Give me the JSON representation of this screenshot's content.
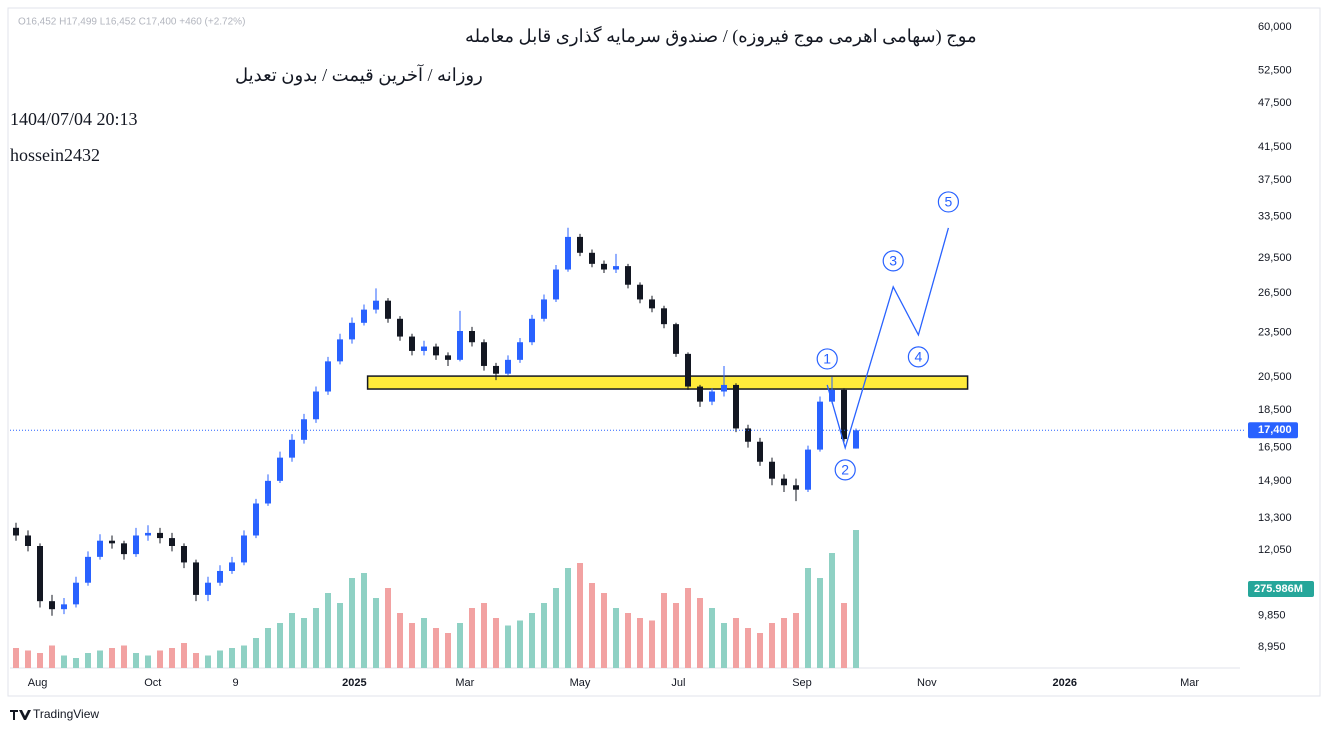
{
  "chart_data": {
    "type": "candlestick",
    "title": "موج (سهامی اهرمی موج فیروزه) / صندوق سرمایه گذاری قابل معامله",
    "subtitle": "روزانه / آخرین قیمت / بدون تعدیل",
    "timestamp": "1404/07/04 20:13",
    "author": "hossein2432",
    "ohlc_legend": "O16,452 H17,499 L16,452 C17,400 +460 (+2.72%)",
    "brand": "TradingView",
    "log_scale": true,
    "up_color": "#2962ff",
    "down_color": "#131722",
    "volume_up_color": "#8fd1c4",
    "volume_down_color": "#f2a2a2",
    "ylim": [
      8390,
      63200
    ],
    "yticks": [
      {
        "value": 60000,
        "label": "60,000"
      },
      {
        "value": 52500,
        "label": "52,500"
      },
      {
        "value": 47500,
        "label": "47,500"
      },
      {
        "value": 41500,
        "label": "41,500"
      },
      {
        "value": 37500,
        "label": "37,500"
      },
      {
        "value": 33500,
        "label": "33,500"
      },
      {
        "value": 29500,
        "label": "29,500"
      },
      {
        "value": 26500,
        "label": "26,500"
      },
      {
        "value": 23500,
        "label": "23,500"
      },
      {
        "value": 20500,
        "label": "20,500"
      },
      {
        "value": 18500,
        "label": "18,500"
      },
      {
        "value": 16500,
        "label": "16,500"
      },
      {
        "value": 14900,
        "label": "14,900"
      },
      {
        "value": 13300,
        "label": "13,300"
      },
      {
        "value": 12050,
        "label": "12,050"
      },
      {
        "value": 9850,
        "label": "9,850"
      },
      {
        "value": 8950,
        "label": "8,950"
      }
    ],
    "xlim": [
      -0.5,
      102
    ],
    "xticks": [
      {
        "value": 1.8,
        "label": "Aug"
      },
      {
        "value": 11.4,
        "label": "Oct"
      },
      {
        "value": 18.3,
        "label": "9"
      },
      {
        "value": 28.2,
        "label": "2025"
      },
      {
        "value": 37.4,
        "label": "Mar"
      },
      {
        "value": 47,
        "label": "May"
      },
      {
        "value": 55.2,
        "label": "Jul"
      },
      {
        "value": 65.5,
        "label": "Sep"
      },
      {
        "value": 75.9,
        "label": "Nov"
      },
      {
        "value": 87.4,
        "label": "2026"
      },
      {
        "value": 97.8,
        "label": "Mar"
      }
    ],
    "x": [
      0,
      1,
      2,
      3,
      4,
      5,
      6,
      7,
      8,
      9,
      10,
      11,
      12,
      13,
      14,
      15,
      16,
      17,
      18,
      19,
      20,
      21,
      22,
      23,
      24,
      25,
      26,
      27,
      28,
      29,
      30,
      31,
      32,
      33,
      34,
      35,
      36,
      37,
      38,
      39,
      40,
      41,
      42,
      43,
      44,
      45,
      46,
      47,
      48,
      49,
      50,
      51,
      52,
      53,
      54,
      55,
      56,
      57,
      58,
      59,
      60,
      61,
      62,
      63,
      64,
      65,
      66,
      67,
      68,
      69,
      70
    ],
    "open": [
      12900,
      12600,
      12200,
      10300,
      10050,
      10200,
      10900,
      11800,
      12400,
      12300,
      11900,
      12600,
      12700,
      12500,
      12200,
      11600,
      10500,
      10900,
      11300,
      11600,
      12600,
      13900,
      14900,
      16000,
      16900,
      18000,
      19600,
      21500,
      23000,
      24200,
      25200,
      25900,
      24500,
      23200,
      22200,
      22500,
      21900,
      21600,
      23600,
      22800,
      21200,
      20700,
      21600,
      22800,
      24500,
      26000,
      28500,
      31500,
      30000,
      29000,
      28500,
      28800,
      27200,
      26000,
      25300,
      24100,
      22000,
      19900,
      19000,
      19600,
      20000,
      17500,
      16800,
      15800,
      15000,
      14700,
      14500,
      16400,
      19000,
      19700,
      16452
    ],
    "high": [
      13100,
      12800,
      12300,
      10500,
      10400,
      11100,
      12000,
      12650,
      12600,
      12400,
      12900,
      13000,
      12900,
      12700,
      12300,
      11700,
      11100,
      11500,
      11800,
      12800,
      14100,
      15200,
      16300,
      17200,
      18300,
      19900,
      21800,
      23400,
      24600,
      25600,
      26900,
      26100,
      24700,
      23400,
      22900,
      22700,
      22100,
      25100,
      23900,
      23000,
      21400,
      21900,
      23100,
      24800,
      26400,
      28900,
      32400,
      31800,
      30300,
      29300,
      29900,
      29000,
      27400,
      26300,
      25500,
      24200,
      22100,
      20000,
      19800,
      21200,
      20100,
      17700,
      17000,
      16000,
      15200,
      15000,
      16600,
      19300,
      20500,
      19800,
      17499
    ],
    "low": [
      12400,
      12000,
      10100,
      9850,
      9900,
      10100,
      10800,
      11700,
      12100,
      11700,
      11800,
      12400,
      12300,
      12000,
      11400,
      10300,
      10300,
      10800,
      11200,
      11500,
      12500,
      13800,
      14800,
      15800,
      16700,
      17800,
      19400,
      21300,
      22700,
      24000,
      24900,
      24200,
      22900,
      21900,
      21900,
      21600,
      21200,
      21500,
      22500,
      20900,
      20300,
      20600,
      21400,
      22600,
      24300,
      25800,
      28300,
      29700,
      28700,
      28200,
      28200,
      26900,
      25700,
      25000,
      23800,
      21800,
      19700,
      18700,
      18800,
      19300,
      17300,
      16500,
      15600,
      14700,
      14400,
      14000,
      14400,
      16300,
      18900,
      16800,
      16452
    ],
    "close": [
      12600,
      12200,
      10300,
      10050,
      10200,
      10900,
      11800,
      12400,
      12300,
      11900,
      12600,
      12700,
      12500,
      12200,
      11600,
      10500,
      10900,
      11300,
      11600,
      12600,
      13900,
      14900,
      16000,
      16900,
      18000,
      19600,
      21500,
      23000,
      24200,
      25200,
      25900,
      24500,
      23200,
      22200,
      22500,
      21900,
      21600,
      23600,
      22800,
      21200,
      20700,
      21600,
      22800,
      24500,
      26000,
      28500,
      31500,
      30000,
      29000,
      28500,
      28800,
      27200,
      26000,
      25300,
      24100,
      22000,
      19900,
      19000,
      19600,
      20000,
      17500,
      16800,
      15800,
      15000,
      14700,
      14500,
      16400,
      19000,
      19700,
      16940,
      17400
    ],
    "volume": [
      40,
      35,
      30,
      45,
      25,
      20,
      30,
      35,
      40,
      45,
      30,
      25,
      35,
      40,
      50,
      30,
      25,
      35,
      40,
      45,
      60,
      80,
      90,
      110,
      100,
      120,
      150,
      130,
      180,
      190,
      140,
      160,
      110,
      90,
      100,
      80,
      70,
      90,
      120,
      130,
      100,
      85,
      95,
      110,
      130,
      160,
      200,
      210,
      170,
      150,
      120,
      110,
      100,
      95,
      150,
      130,
      160,
      140,
      120,
      90,
      100,
      80,
      70,
      90,
      100,
      110,
      200,
      180,
      230,
      130,
      275.986
    ],
    "last_volume_label": "275.986M",
    "last_price": {
      "value": 17400,
      "label": "17,400"
    },
    "zone": {
      "x": [
        29.3,
        79.3
      ],
      "y": [
        19750,
        20550
      ],
      "color": "#ffeb3b"
    },
    "wave": {
      "x": [
        67.6,
        69.1,
        73.1,
        75.2,
        77.7
      ],
      "y": [
        20000,
        16488,
        27021,
        23319,
        32380
      ],
      "labels": [
        "1",
        "2",
        "3",
        "4",
        "5"
      ],
      "color": "#2962ff"
    }
  }
}
